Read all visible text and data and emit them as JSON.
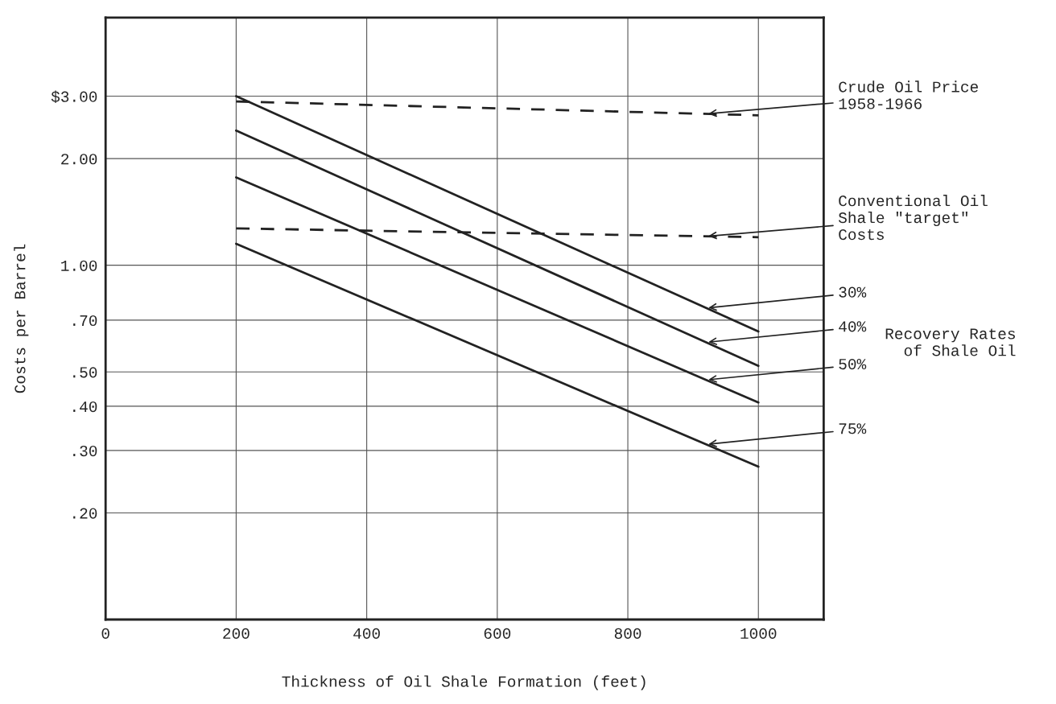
{
  "chart_data": {
    "type": "line",
    "xlabel": "Thickness of Oil Shale Formation (feet)",
    "ylabel": "Costs per Barrel",
    "log": "y",
    "xlim": [
      0,
      1100
    ],
    "xticks": [
      0,
      200,
      400,
      600,
      800,
      1000
    ],
    "ylim": [
      0.1,
      5
    ],
    "yticks": [
      {
        "value": 3,
        "label": "$3.00"
      },
      {
        "value": 2,
        "label": "2.00"
      },
      {
        "value": 1,
        "label": "1.00"
      },
      {
        "value": 0.7,
        "label": ".70"
      },
      {
        "value": 0.5,
        "label": ".50"
      },
      {
        "value": 0.4,
        "label": ".40"
      },
      {
        "value": 0.3,
        "label": ".30"
      },
      {
        "value": 0.2,
        "label": ".20"
      }
    ],
    "grid": true,
    "legend": false,
    "marker": "none",
    "x": [
      200,
      1000
    ],
    "series": [
      {
        "name": "Crude Oil Price\n1958-1966",
        "color": "#222222",
        "line_style": "dashed",
        "values": [
          2.9,
          2.65
        ]
      },
      {
        "name": "Conventional Oil\nShale \"target\"\nCosts",
        "color": "#222222",
        "line_style": "dashed",
        "values": [
          1.27,
          1.2
        ]
      },
      {
        "name": "30%",
        "color": "#222222",
        "line_style": "solid",
        "values": [
          3.0,
          0.65
        ]
      },
      {
        "name": "40%",
        "color": "#222222",
        "line_style": "solid",
        "values": [
          2.4,
          0.52
        ]
      },
      {
        "name": "50%",
        "color": "#222222",
        "line_style": "solid",
        "values": [
          1.77,
          0.41
        ]
      },
      {
        "name": "75%",
        "color": "#222222",
        "line_style": "solid",
        "values": [
          1.15,
          0.27
        ]
      }
    ],
    "annotations": [
      "Recovery Rates\n  of Shale Oil"
    ]
  }
}
